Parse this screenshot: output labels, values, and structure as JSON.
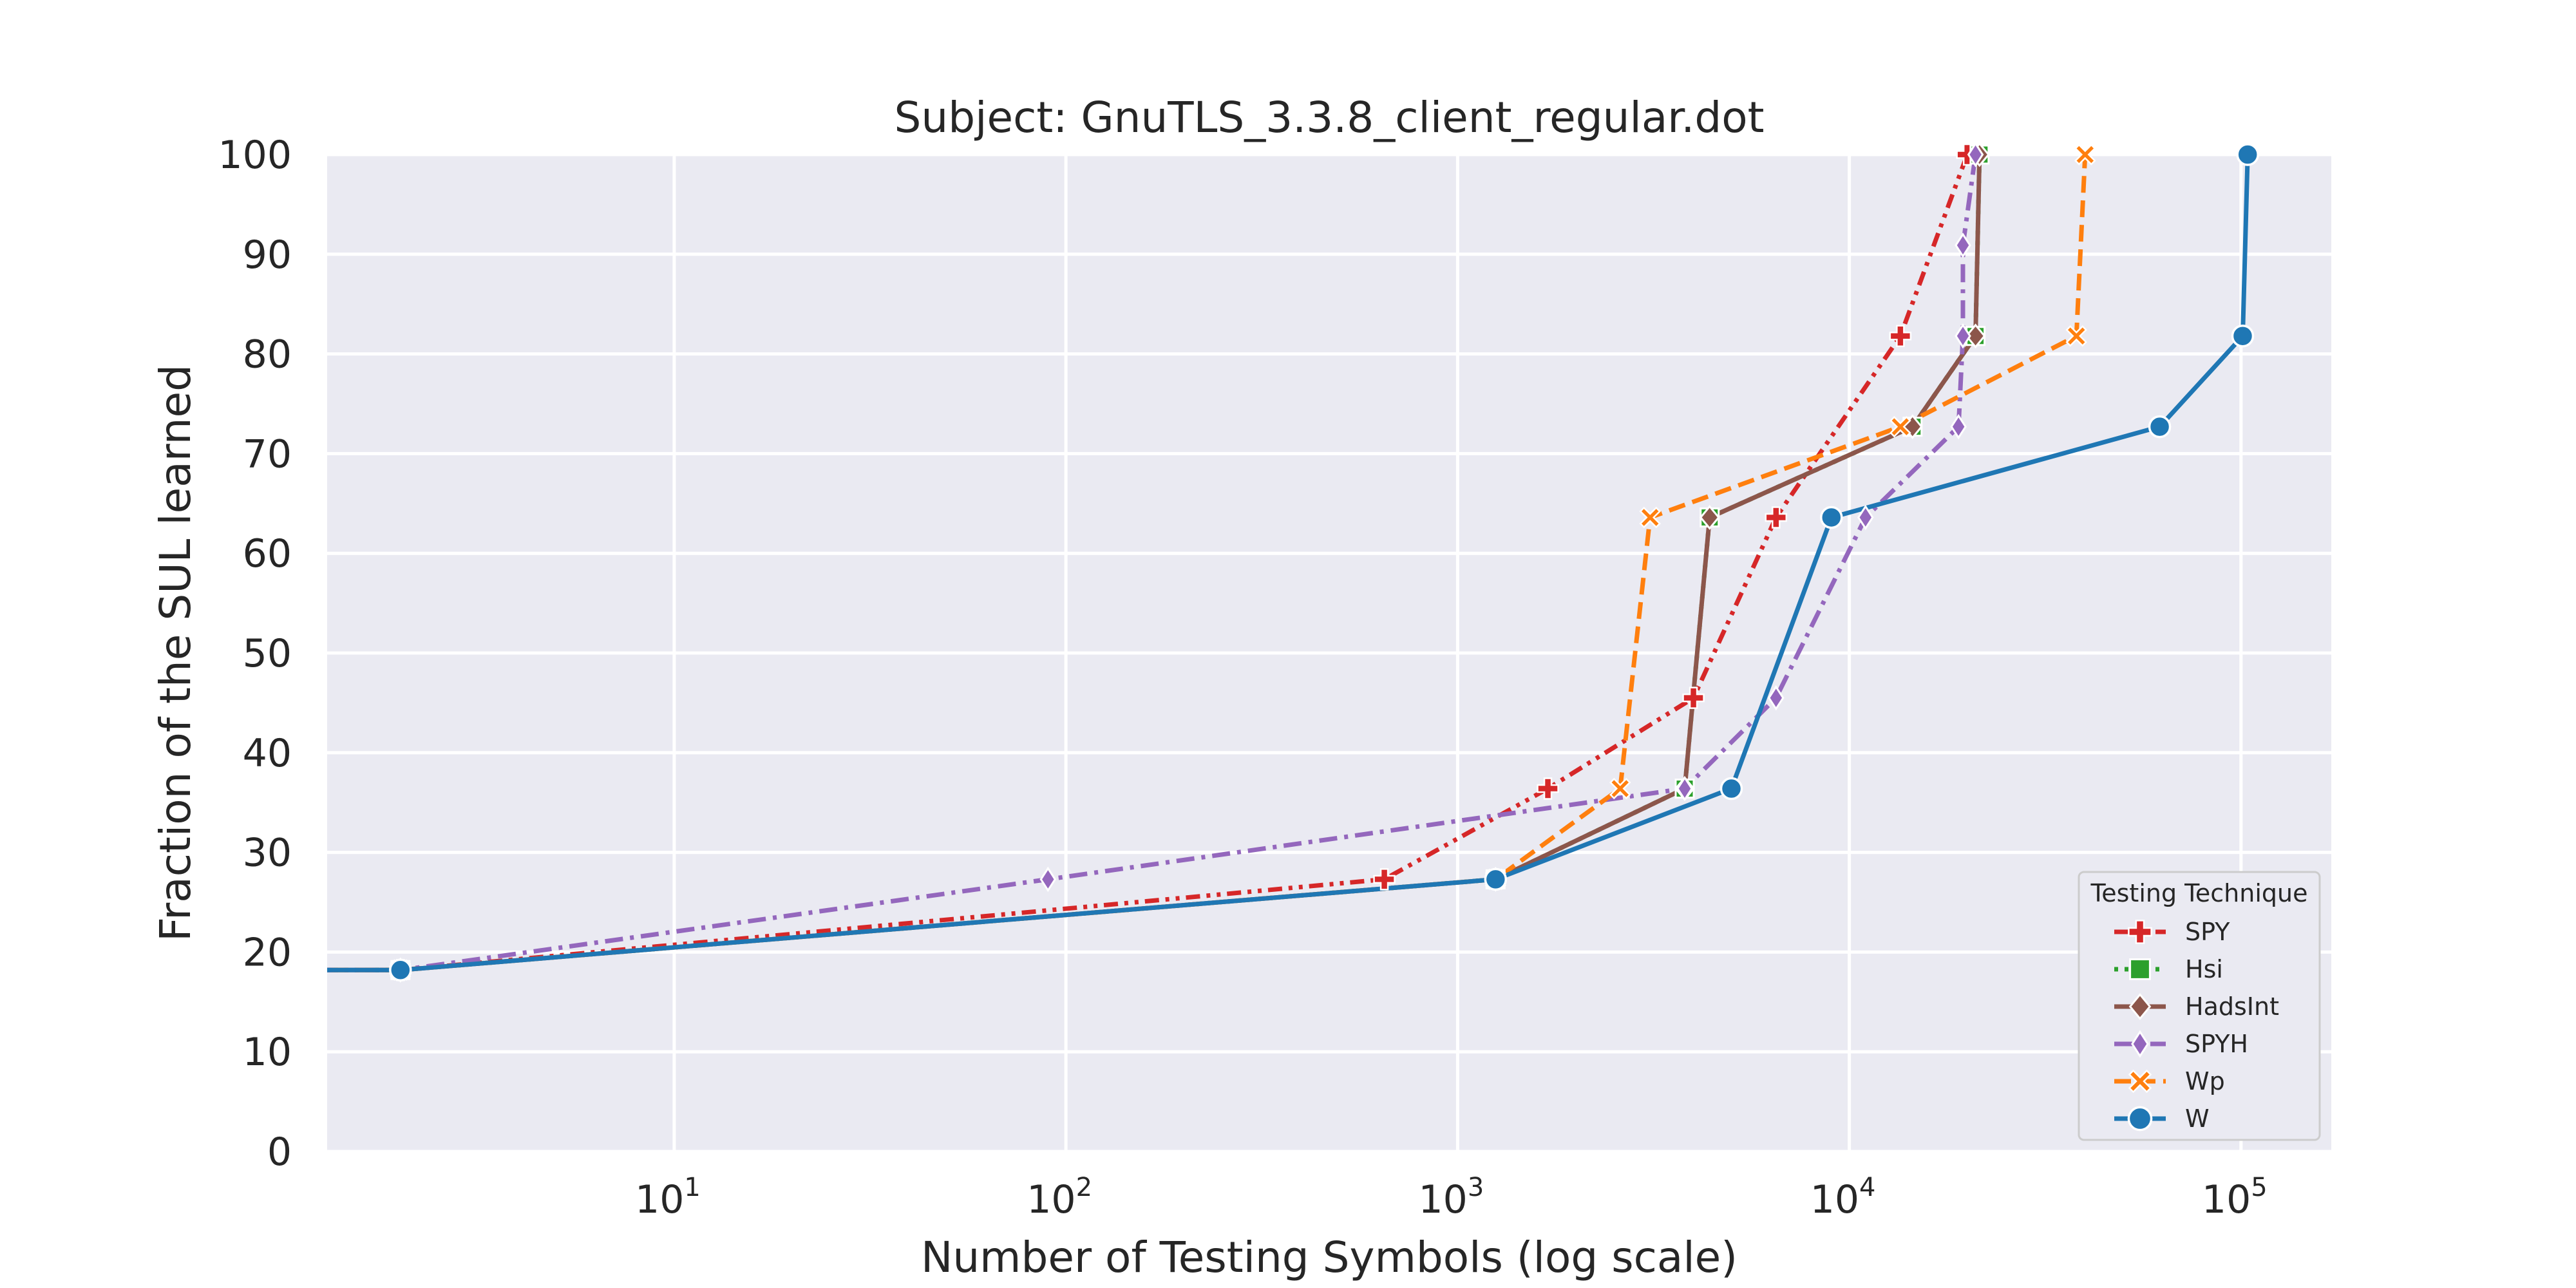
{
  "chart_data": {
    "type": "line",
    "title": "Subject: GnuTLS_3.3.8_client_regular.dot",
    "xlabel": "Number of Testing Symbols (log scale)",
    "ylabel": "Fraction of the SUL learned",
    "xscale": "log",
    "xlim": [
      1.3,
      170000
    ],
    "ylim": [
      0,
      100
    ],
    "x_ticks": [
      {
        "base": "10",
        "exp": "1",
        "value": 10
      },
      {
        "base": "10",
        "exp": "2",
        "value": 100
      },
      {
        "base": "10",
        "exp": "3",
        "value": 1000
      },
      {
        "base": "10",
        "exp": "4",
        "value": 10000
      },
      {
        "base": "10",
        "exp": "5",
        "value": 100000
      }
    ],
    "y_ticks": [
      0,
      10,
      20,
      30,
      40,
      50,
      60,
      70,
      80,
      90,
      100
    ],
    "grid": true,
    "background": "#eaeaf2",
    "legend": {
      "title": "Testing Technique",
      "position": "bottom-right"
    },
    "series": [
      {
        "name": "SPY",
        "color": "#d62728",
        "dash": "dash-dot-dot",
        "marker": "plus",
        "points": [
          [
            1,
            18.2
          ],
          [
            2,
            18.2
          ],
          [
            650,
            27.3
          ],
          [
            1700,
            36.4
          ],
          [
            4000,
            45.5
          ],
          [
            6500,
            63.6
          ],
          [
            13500,
            81.8
          ],
          [
            20000,
            100
          ]
        ]
      },
      {
        "name": "Hsi",
        "color": "#2ca02c",
        "dash": "dotted",
        "marker": "square",
        "points": [
          [
            1,
            18.2
          ],
          [
            2,
            18.2
          ],
          [
            1250,
            27.3
          ],
          [
            3800,
            36.4
          ],
          [
            4400,
            63.6
          ],
          [
            14500,
            72.7
          ],
          [
            21000,
            81.8
          ],
          [
            21500,
            100
          ]
        ]
      },
      {
        "name": "HadsInt",
        "color": "#8c564b",
        "dash": "solid",
        "marker": "diamond",
        "points": [
          [
            1,
            18.2
          ],
          [
            2,
            18.2
          ],
          [
            1250,
            27.3
          ],
          [
            3800,
            36.4
          ],
          [
            4400,
            63.6
          ],
          [
            14500,
            72.7
          ],
          [
            21000,
            81.8
          ],
          [
            21500,
            100
          ]
        ]
      },
      {
        "name": "SPYH",
        "color": "#9467bd",
        "dash": "dash-dot",
        "marker": "thin-diamond",
        "points": [
          [
            1,
            18.2
          ],
          [
            2,
            18.2
          ],
          [
            90,
            27.3
          ],
          [
            3800,
            36.4
          ],
          [
            6500,
            45.5
          ],
          [
            11000,
            63.6
          ],
          [
            19000,
            72.7
          ],
          [
            19500,
            81.8
          ],
          [
            19500,
            90.9
          ],
          [
            21000,
            100
          ]
        ]
      },
      {
        "name": "Wp",
        "color": "#ff7f0e",
        "dash": "dashed",
        "marker": "x",
        "points": [
          [
            1,
            18.2
          ],
          [
            2,
            18.2
          ],
          [
            1250,
            27.3
          ],
          [
            2600,
            36.4
          ],
          [
            3100,
            63.6
          ],
          [
            13500,
            72.7
          ],
          [
            38000,
            81.8
          ],
          [
            40000,
            100
          ]
        ]
      },
      {
        "name": "W",
        "color": "#1f77b4",
        "dash": "solid",
        "marker": "circle",
        "points": [
          [
            1,
            18.2
          ],
          [
            2,
            18.2
          ],
          [
            1250,
            27.3
          ],
          [
            5000,
            36.4
          ],
          [
            9000,
            63.6
          ],
          [
            62000,
            72.7
          ],
          [
            101000,
            81.8
          ],
          [
            104000,
            100
          ]
        ]
      }
    ]
  }
}
